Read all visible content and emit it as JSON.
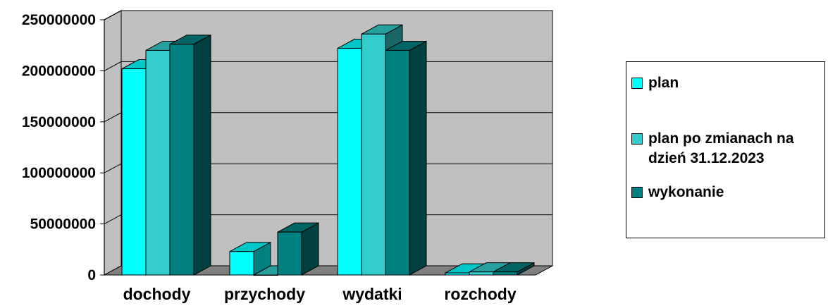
{
  "chart_data": {
    "type": "bar",
    "style": "3d-clustered-column",
    "categories": [
      "dochody",
      "przychody",
      "wydatki",
      "rozchody"
    ],
    "series": [
      {
        "name": "plan",
        "color": "#00ffff",
        "values": [
          202000000,
          23000000,
          222000000,
          2000000
        ]
      },
      {
        "name": "plan po zmianach na dzień 31.12.2023",
        "color": "#33cccc",
        "values": [
          220000000,
          0,
          236000000,
          3000000
        ]
      },
      {
        "name": "wykonanie",
        "color": "#008080",
        "values": [
          226000000,
          42000000,
          220000000,
          3000000
        ]
      }
    ],
    "yticks": [
      "0",
      "50000000",
      "100000000",
      "150000000",
      "200000000",
      "250000000"
    ],
    "ylim": [
      0,
      250000000
    ],
    "grid": true,
    "legend_position": "right",
    "colors": {
      "plot_area": "#c0c0c0",
      "floor": "#808080"
    }
  }
}
